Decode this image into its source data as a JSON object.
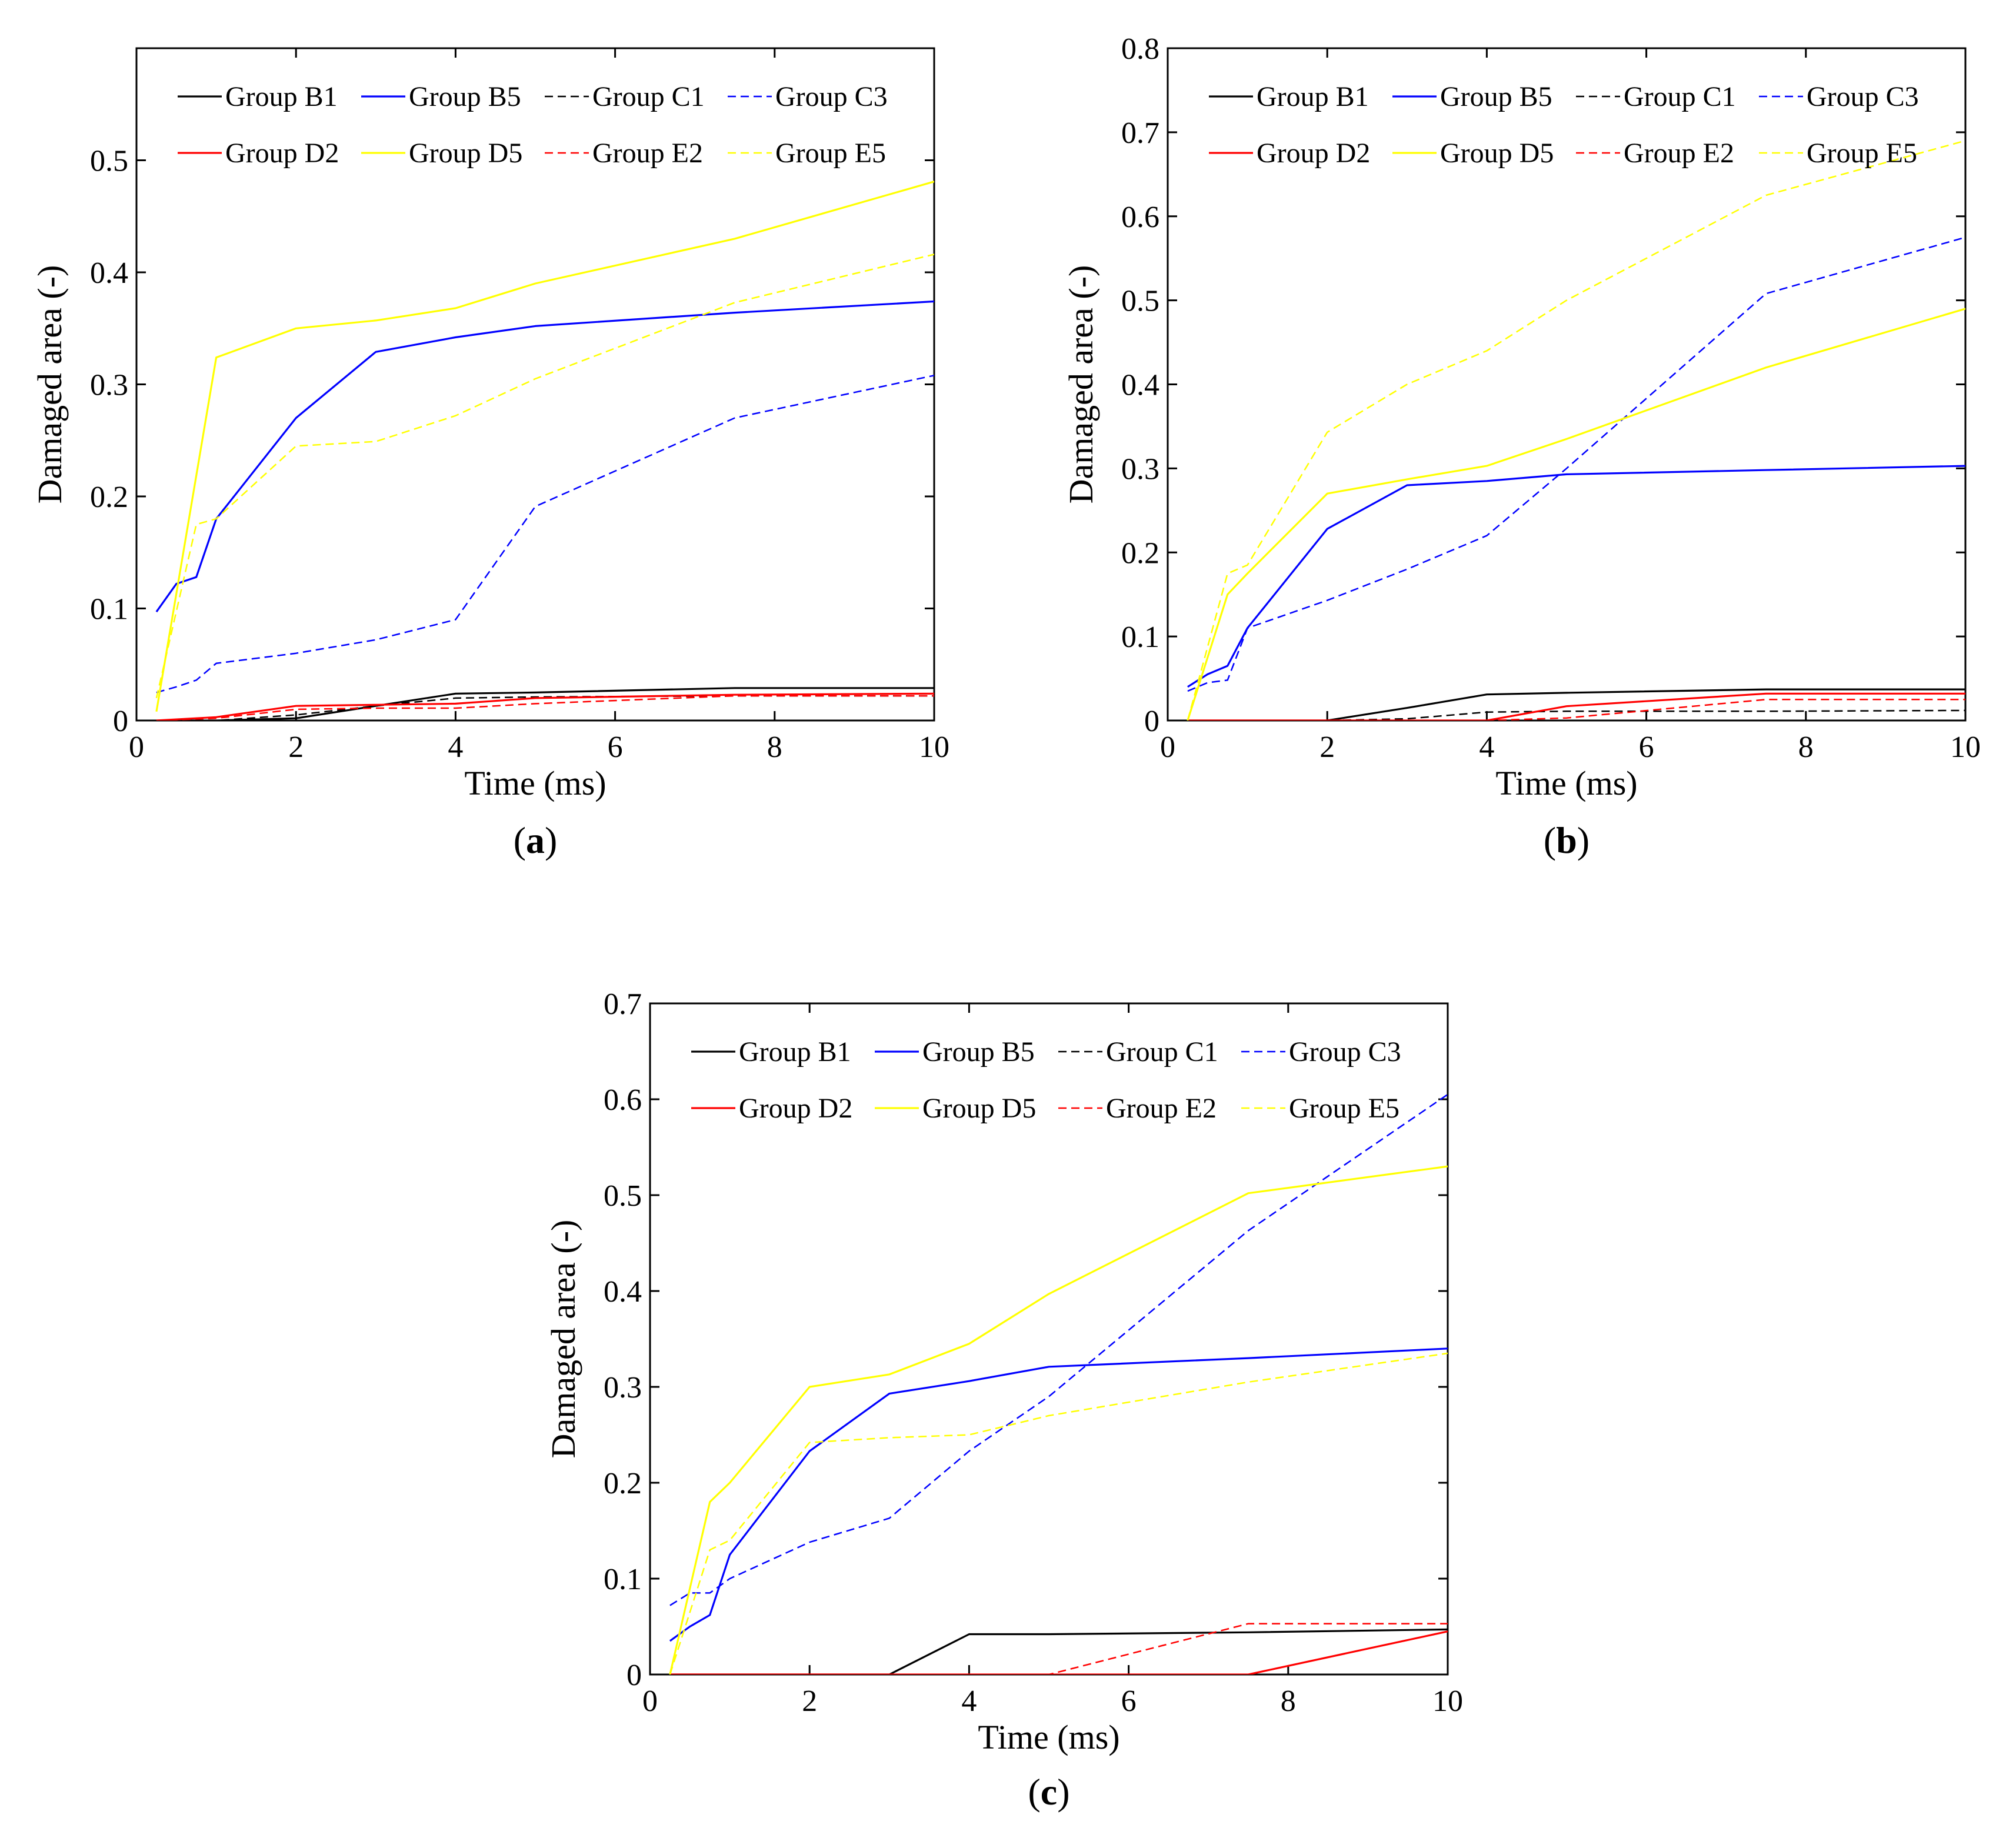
{
  "figure": {
    "panel_labels": [
      "a",
      "b",
      "c"
    ],
    "x_label": "Time (ms)",
    "y_label": "Damaged area (-)"
  },
  "legend_entries": [
    {
      "name": "Group B1",
      "color": "#000000",
      "style": "solid"
    },
    {
      "name": "Group B5",
      "color": "#0000ff",
      "style": "solid"
    },
    {
      "name": "Group C1",
      "color": "#000000",
      "style": "dashed"
    },
    {
      "name": "Group C3",
      "color": "#0000ff",
      "style": "dashed"
    },
    {
      "name": "Group D2",
      "color": "#ff0000",
      "style": "solid"
    },
    {
      "name": "Group D5",
      "color": "#ffff00",
      "style": "solid"
    },
    {
      "name": "Group E2",
      "color": "#ff0000",
      "style": "dashed"
    },
    {
      "name": "Group E5",
      "color": "#ffff00",
      "style": "dashed"
    }
  ],
  "chart_data": [
    {
      "panel": "a",
      "type": "line",
      "xlabel": "Time (ms)",
      "ylabel": "Damaged area (-)",
      "xlim": [
        0,
        10
      ],
      "ylim": [
        0,
        0.6
      ],
      "xticks": [
        0,
        2,
        4,
        6,
        8,
        10
      ],
      "yticks": [
        0,
        0.1,
        0.2,
        0.3,
        0.4,
        0.5
      ],
      "series": [
        {
          "name": "Group B1",
          "x": [
            0.25,
            1,
            2,
            3,
            4,
            5,
            7.5,
            10
          ],
          "y": [
            0,
            0,
            0.002,
            0.013,
            0.024,
            0.025,
            0.029,
            0.029
          ]
        },
        {
          "name": "Group B5",
          "x": [
            0.25,
            0.5,
            0.75,
            1,
            2,
            3,
            4,
            5,
            7.5,
            10
          ],
          "y": [
            0.097,
            0.122,
            0.128,
            0.18,
            0.27,
            0.329,
            0.342,
            0.352,
            0.364,
            0.374
          ]
        },
        {
          "name": "Group C1",
          "x": [
            0.25,
            1,
            2,
            3,
            4,
            5,
            7.5,
            10
          ],
          "y": [
            0,
            0,
            0.005,
            0.013,
            0.02,
            0.021,
            0.022,
            0.022
          ]
        },
        {
          "name": "Group C3",
          "x": [
            0.25,
            0.5,
            0.75,
            1,
            2,
            3,
            4,
            5,
            7.5,
            10
          ],
          "y": [
            0.025,
            0.03,
            0.036,
            0.051,
            0.06,
            0.072,
            0.09,
            0.191,
            0.27,
            0.308
          ]
        },
        {
          "name": "Group D2",
          "x": [
            0.25,
            1,
            2,
            3,
            4,
            5,
            7.5,
            10
          ],
          "y": [
            0,
            0.003,
            0.013,
            0.014,
            0.015,
            0.02,
            0.023,
            0.024
          ]
        },
        {
          "name": "Group D5",
          "x": [
            0.25,
            1,
            2,
            3,
            4,
            5,
            7.5,
            10
          ],
          "y": [
            0.008,
            0.324,
            0.35,
            0.357,
            0.368,
            0.39,
            0.43,
            0.481
          ]
        },
        {
          "name": "Group E2",
          "x": [
            0.25,
            1,
            2,
            3,
            4,
            5,
            7.5,
            10
          ],
          "y": [
            0,
            0.002,
            0.01,
            0.011,
            0.011,
            0.015,
            0.022,
            0.022
          ]
        },
        {
          "name": "Group E5",
          "x": [
            0.25,
            0.75,
            1,
            2,
            3,
            4,
            5,
            7.5,
            10
          ],
          "y": [
            0.02,
            0.175,
            0.18,
            0.245,
            0.249,
            0.272,
            0.305,
            0.373,
            0.416
          ]
        }
      ]
    },
    {
      "panel": "b",
      "type": "line",
      "xlabel": "Time (ms)",
      "ylabel": "Damaged area (-)",
      "xlim": [
        0,
        10
      ],
      "ylim": [
        0,
        0.8
      ],
      "xticks": [
        0,
        2,
        4,
        6,
        8,
        10
      ],
      "yticks": [
        0,
        0.1,
        0.2,
        0.3,
        0.4,
        0.5,
        0.6,
        0.7,
        0.8
      ],
      "series": [
        {
          "name": "Group B1",
          "x": [
            0.25,
            1,
            2,
            3,
            4,
            5,
            7.5,
            10
          ],
          "y": [
            0,
            0,
            0,
            0.015,
            0.031,
            0.033,
            0.037,
            0.037
          ]
        },
        {
          "name": "Group B5",
          "x": [
            0.25,
            0.5,
            0.75,
            1,
            2,
            3,
            4,
            5,
            7.5,
            10
          ],
          "y": [
            0.04,
            0.055,
            0.065,
            0.11,
            0.228,
            0.28,
            0.285,
            0.293,
            0.298,
            0.303
          ]
        },
        {
          "name": "Group C1",
          "x": [
            0.25,
            1,
            2,
            3,
            4,
            5,
            7.5,
            10
          ],
          "y": [
            0,
            0,
            0,
            0.002,
            0.01,
            0.011,
            0.011,
            0.012
          ]
        },
        {
          "name": "Group C3",
          "x": [
            0.25,
            0.5,
            0.75,
            1,
            2,
            3,
            4,
            5,
            7.5,
            10
          ],
          "y": [
            0.035,
            0.045,
            0.048,
            0.11,
            0.143,
            0.18,
            0.22,
            0.3,
            0.508,
            0.575
          ]
        },
        {
          "name": "Group D2",
          "x": [
            0.25,
            1,
            2,
            3,
            4,
            5,
            7.5,
            10
          ],
          "y": [
            0,
            0,
            0,
            0,
            0,
            0.017,
            0.032,
            0.032
          ]
        },
        {
          "name": "Group D5",
          "x": [
            0.25,
            0.75,
            1,
            2,
            3,
            4,
            5,
            7.5,
            10
          ],
          "y": [
            0,
            0.15,
            0.175,
            0.27,
            0.287,
            0.303,
            0.335,
            0.42,
            0.49
          ]
        },
        {
          "name": "Group E2",
          "x": [
            0.25,
            1,
            2,
            3,
            4,
            5,
            7.5,
            10
          ],
          "y": [
            0,
            0,
            0,
            0,
            0,
            0.003,
            0.025,
            0.025
          ]
        },
        {
          "name": "Group E5",
          "x": [
            0.25,
            0.75,
            1,
            2,
            3,
            4,
            5,
            7.5,
            10
          ],
          "y": [
            0,
            0.175,
            0.185,
            0.343,
            0.4,
            0.44,
            0.5,
            0.625,
            0.69
          ]
        }
      ]
    },
    {
      "panel": "c",
      "type": "line",
      "xlabel": "Time (ms)",
      "ylabel": "Damaged area (-)",
      "xlim": [
        0,
        10
      ],
      "ylim": [
        0,
        0.7
      ],
      "xticks": [
        0,
        2,
        4,
        6,
        8,
        10
      ],
      "yticks": [
        0,
        0.1,
        0.2,
        0.3,
        0.4,
        0.5,
        0.6,
        0.7
      ],
      "series": [
        {
          "name": "Group B1",
          "x": [
            0.25,
            1,
            2,
            3,
            4,
            5,
            7.5,
            10
          ],
          "y": [
            0,
            0,
            0,
            0,
            0.042,
            0.042,
            0.044,
            0.047
          ]
        },
        {
          "name": "Group B5",
          "x": [
            0.25,
            0.5,
            0.75,
            1,
            2,
            3,
            4,
            5,
            7.5,
            10
          ],
          "y": [
            0.035,
            0.05,
            0.062,
            0.125,
            0.233,
            0.293,
            0.306,
            0.321,
            0.33,
            0.34
          ]
        },
        {
          "name": "Group C1",
          "x": [
            0.25,
            1,
            2,
            3,
            4,
            5,
            7.5,
            10
          ],
          "y": [
            0,
            0,
            0,
            0,
            0,
            0,
            0,
            0
          ]
        },
        {
          "name": "Group C3",
          "x": [
            0.25,
            0.5,
            0.75,
            1,
            2,
            3,
            4,
            5,
            7.5,
            10
          ],
          "y": [
            0.072,
            0.085,
            0.085,
            0.1,
            0.138,
            0.163,
            0.233,
            0.29,
            0.463,
            0.605
          ]
        },
        {
          "name": "Group D2",
          "x": [
            0.25,
            1,
            2,
            3,
            4,
            5,
            7.5,
            10
          ],
          "y": [
            0,
            0,
            0,
            0,
            0,
            0,
            0,
            0.045
          ]
        },
        {
          "name": "Group D5",
          "x": [
            0.25,
            0.75,
            1,
            2,
            3,
            4,
            5,
            7.5,
            10
          ],
          "y": [
            0,
            0.18,
            0.2,
            0.3,
            0.313,
            0.345,
            0.397,
            0.502,
            0.53
          ]
        },
        {
          "name": "Group E2",
          "x": [
            0.25,
            1,
            2,
            3,
            4,
            5,
            7.5,
            10
          ],
          "y": [
            0,
            0,
            0,
            0,
            0,
            0,
            0.053,
            0.053
          ]
        },
        {
          "name": "Group E5",
          "x": [
            0.25,
            0.75,
            1,
            2,
            3,
            4,
            5,
            7.5,
            10
          ],
          "y": [
            0,
            0.13,
            0.14,
            0.242,
            0.247,
            0.25,
            0.27,
            0.305,
            0.335
          ]
        }
      ]
    }
  ]
}
